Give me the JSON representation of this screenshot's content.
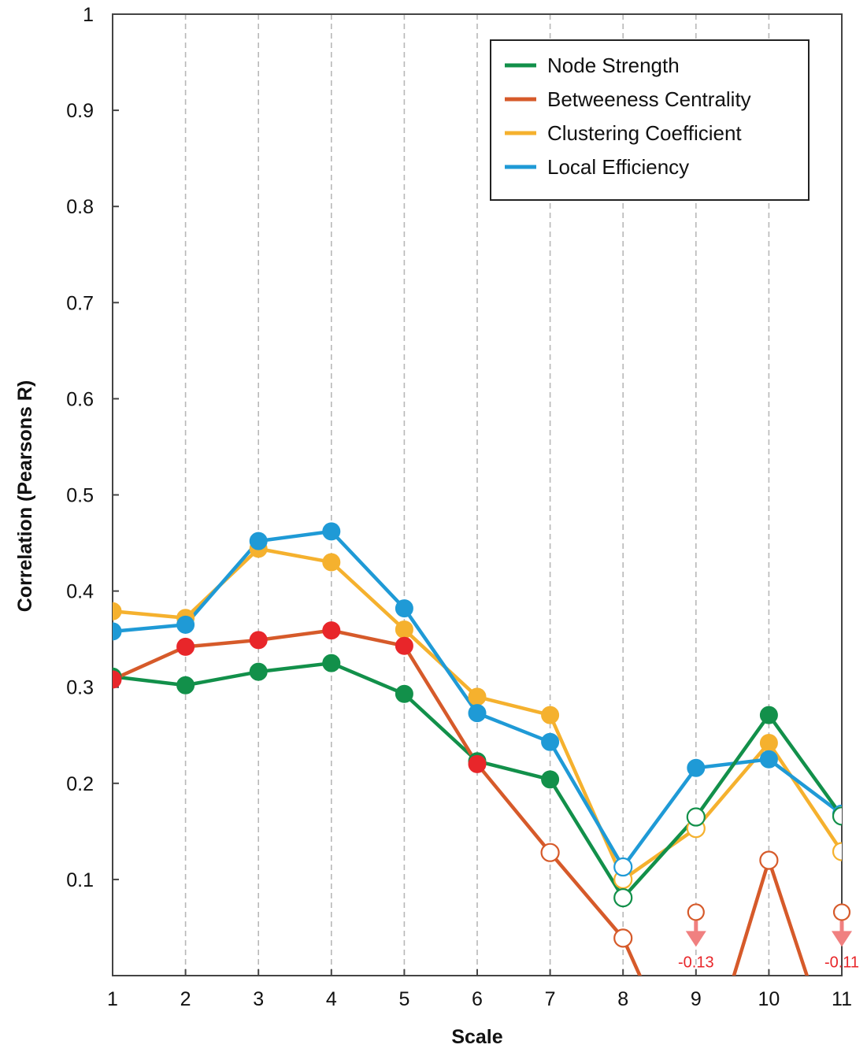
{
  "chart_data": {
    "type": "line",
    "title": "",
    "xlabel": "Scale",
    "ylabel": "Correlation (Pearsons R)",
    "x": [
      1,
      2,
      3,
      4,
      5,
      6,
      7,
      8,
      9,
      10,
      11
    ],
    "xlim": [
      1,
      11
    ],
    "ylim": [
      0,
      1
    ],
    "yticks": [
      0.1,
      0.2,
      0.3,
      0.4,
      0.5,
      0.6,
      0.7,
      0.8,
      0.9,
      1
    ],
    "ytick_labels": [
      "0.1",
      "0.2",
      "0.3",
      "0.4",
      "0.5",
      "0.6",
      "0.7",
      "0.8",
      "0.9",
      "1"
    ],
    "xtick_labels": [
      "1",
      "2",
      "3",
      "4",
      "5",
      "6",
      "7",
      "8",
      "9",
      "10",
      "11"
    ],
    "grid": "vertical dashed",
    "legend_position": "top-right",
    "series": [
      {
        "name": "Clustering Coefficient",
        "color": "#F5B12E",
        "values": [
          0.379,
          0.372,
          0.444,
          0.43,
          0.36,
          0.29,
          0.271,
          0.1,
          0.153,
          0.242,
          0.129
        ],
        "significant": [
          true,
          true,
          true,
          true,
          true,
          true,
          true,
          false,
          false,
          true,
          false
        ]
      },
      {
        "name": "Local Efficiency",
        "color": "#1F9AD6",
        "values": [
          0.358,
          0.365,
          0.452,
          0.462,
          0.382,
          0.273,
          0.243,
          0.113,
          0.216,
          0.225,
          0.168
        ],
        "significant": [
          true,
          true,
          true,
          true,
          true,
          true,
          true,
          false,
          true,
          true,
          false
        ]
      },
      {
        "name": "Node Strength",
        "color": "#12904A",
        "values": [
          0.311,
          0.302,
          0.316,
          0.325,
          0.293,
          0.223,
          0.204,
          0.081,
          0.165,
          0.271,
          0.166
        ],
        "significant": [
          true,
          true,
          true,
          true,
          true,
          true,
          true,
          false,
          false,
          true,
          false
        ]
      },
      {
        "name": "Betweeness Centrality",
        "color": "#D65A2A",
        "marker_fill": "#E8262A",
        "values": [
          0.308,
          0.342,
          0.349,
          0.359,
          0.343,
          0.22,
          0.128,
          0.039,
          -0.13,
          0.12,
          -0.11
        ],
        "significant": [
          true,
          true,
          true,
          true,
          true,
          true,
          false,
          false,
          false,
          false,
          false
        ]
      }
    ],
    "legend_order": [
      "Node Strength",
      "Betweeness Centrality",
      "Clustering Coefficient",
      "Local Efficiency"
    ],
    "annotations": [
      {
        "x": 9,
        "text": "-0.13",
        "color": "#E8262A",
        "arrow_color": "#F08080",
        "marker_y": 0.066
      },
      {
        "x": 11,
        "text": "-0.11",
        "color": "#E8262A",
        "arrow_color": "#F08080",
        "marker_y": 0.066
      }
    ]
  }
}
